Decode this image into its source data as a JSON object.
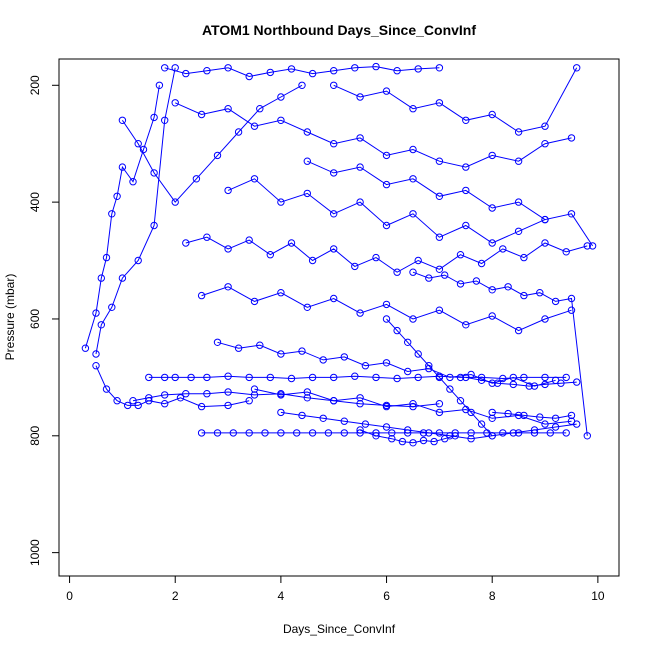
{
  "chart_data": {
    "type": "line",
    "title": "ATOM1 Northbound Days_Since_ConvInf",
    "xlabel": "Days_Since_ConvInf",
    "ylabel": "Pressure (mbar)",
    "xlim": [
      -0.2,
      10.4
    ],
    "ylim": [
      1040,
      155
    ],
    "y_inverted": true,
    "x_ticks": [
      0,
      2,
      4,
      6,
      8,
      10
    ],
    "y_ticks": [
      200,
      400,
      600,
      800,
      1000
    ],
    "marker": "open-circle",
    "color": "#0000ff",
    "series": [
      {
        "x": [
          0.3,
          0.5,
          0.6,
          0.7,
          0.8,
          0.9,
          1.0,
          1.2,
          1.4,
          1.6,
          1.7
        ],
        "y": [
          650,
          590,
          530,
          495,
          420,
          390,
          340,
          365,
          310,
          255,
          200
        ]
      },
      {
        "x": [
          0.5,
          0.6,
          0.8,
          1.0,
          1.3,
          1.6,
          1.8,
          2.0
        ],
        "y": [
          660,
          610,
          580,
          530,
          500,
          440,
          260,
          170
        ]
      },
      {
        "x": [
          0.5,
          0.7,
          0.9,
          1.1,
          1.3,
          1.5,
          1.8,
          2.1,
          2.5,
          3.0,
          3.4
        ],
        "y": [
          680,
          720,
          740,
          748,
          748,
          740,
          745,
          735,
          750,
          748,
          740
        ]
      },
      {
        "x": [
          1.0,
          1.3,
          1.6,
          2.0,
          2.4,
          2.8,
          3.2,
          3.6,
          4.0,
          4.4
        ],
        "y": [
          260,
          300,
          350,
          400,
          360,
          320,
          280,
          240,
          220,
          200
        ]
      },
      {
        "x": [
          1.2,
          1.5,
          1.8,
          2.2,
          2.6,
          3.0,
          3.5,
          4.0,
          4.5,
          5.0,
          5.5,
          6.0,
          6.5,
          7.0
        ],
        "y": [
          740,
          735,
          730,
          728,
          728,
          725,
          730,
          728,
          735,
          740,
          745,
          748,
          750,
          745
        ]
      },
      {
        "x": [
          1.5,
          1.8,
          2.0,
          2.3,
          2.6,
          3.0,
          3.4,
          3.8,
          4.2,
          4.6,
          5.0,
          5.4,
          5.8,
          6.2,
          6.6,
          7.0,
          7.4,
          7.8,
          8.2,
          8.6,
          9.0,
          9.4
        ],
        "y": [
          700,
          700,
          700,
          700,
          700,
          698,
          700,
          700,
          702,
          700,
          700,
          698,
          700,
          702,
          700,
          698,
          700,
          700,
          702,
          700,
          700,
          700
        ]
      },
      {
        "x": [
          2.5,
          2.8,
          3.1,
          3.4,
          3.7,
          4.0,
          4.3,
          4.6,
          4.9,
          5.2,
          5.5,
          5.8,
          6.1,
          6.4,
          6.7,
          7.0,
          7.3,
          7.6,
          7.9,
          8.2,
          8.5,
          8.8,
          9.1,
          9.4
        ],
        "y": [
          795,
          795,
          795,
          795,
          795,
          795,
          795,
          795,
          795,
          795,
          795,
          795,
          795,
          795,
          795,
          795,
          795,
          795,
          795,
          795,
          795,
          795,
          795,
          795
        ]
      },
      {
        "x": [
          1.8,
          2.2,
          2.6,
          3.0,
          3.4,
          3.8,
          4.2,
          4.6,
          5.0,
          5.4,
          5.8,
          6.2,
          6.6,
          7.0
        ],
        "y": [
          170,
          180,
          175,
          170,
          185,
          178,
          172,
          180,
          175,
          170,
          168,
          175,
          172,
          170
        ]
      },
      {
        "x": [
          2.0,
          2.5,
          3.0,
          3.5,
          4.0,
          4.5,
          5.0,
          5.5,
          6.0,
          6.5,
          7.0,
          7.5,
          8.0,
          8.5,
          9.0,
          9.5
        ],
        "y": [
          230,
          250,
          240,
          270,
          260,
          280,
          300,
          290,
          320,
          310,
          330,
          340,
          320,
          330,
          300,
          290
        ]
      },
      {
        "x": [
          2.2,
          2.6,
          3.0,
          3.4,
          3.8,
          4.2,
          4.6,
          5.0,
          5.4,
          5.8,
          6.2,
          6.6,
          7.0,
          7.4,
          7.8,
          8.2,
          8.6,
          9.0,
          9.4,
          9.8
        ],
        "y": [
          470,
          460,
          480,
          465,
          490,
          470,
          500,
          480,
          510,
          495,
          520,
          500,
          515,
          490,
          505,
          480,
          495,
          470,
          485,
          475
        ]
      },
      {
        "x": [
          2.5,
          3.0,
          3.5,
          4.0,
          4.5,
          5.0,
          5.5,
          6.0,
          6.5,
          7.0,
          7.5,
          8.0,
          8.5,
          9.0,
          9.5
        ],
        "y": [
          560,
          545,
          570,
          555,
          580,
          565,
          590,
          575,
          600,
          585,
          610,
          595,
          620,
          600,
          585
        ]
      },
      {
        "x": [
          2.8,
          3.2,
          3.6,
          4.0,
          4.4,
          4.8,
          5.2,
          5.6,
          6.0,
          6.4,
          6.8,
          7.2,
          7.6,
          8.0,
          8.4,
          8.8,
          9.2
        ],
        "y": [
          640,
          650,
          645,
          660,
          655,
          670,
          665,
          680,
          675,
          690,
          685,
          700,
          695,
          710,
          700,
          715,
          705
        ]
      },
      {
        "x": [
          3.0,
          3.5,
          4.0,
          4.5,
          5.0,
          5.5,
          6.0,
          6.5,
          7.0,
          7.5,
          8.0,
          8.5,
          9.0
        ],
        "y": [
          380,
          360,
          400,
          385,
          420,
          400,
          440,
          420,
          460,
          440,
          470,
          450,
          430
        ]
      },
      {
        "x": [
          3.5,
          4.0,
          4.5,
          5.0,
          5.5,
          6.0,
          6.5,
          7.0,
          7.5,
          8.0,
          8.5,
          9.0,
          9.5
        ],
        "y": [
          720,
          730,
          725,
          740,
          735,
          750,
          745,
          760,
          755,
          770,
          765,
          780,
          775
        ]
      },
      {
        "x": [
          4.0,
          4.4,
          4.8,
          5.2,
          5.6,
          6.0,
          6.4,
          6.8,
          7.2,
          7.6,
          8.0,
          8.4,
          8.8,
          9.2,
          9.6
        ],
        "y": [
          760,
          765,
          770,
          775,
          780,
          785,
          790,
          795,
          800,
          805,
          800,
          795,
          790,
          785,
          780
        ]
      },
      {
        "x": [
          5.5,
          5.8,
          6.1,
          6.3,
          6.5,
          6.7,
          6.9,
          7.1,
          7.3
        ],
        "y": [
          790,
          800,
          805,
          810,
          812,
          808,
          810,
          805,
          800
        ]
      },
      {
        "x": [
          6.0,
          6.2,
          6.4,
          6.6,
          6.8,
          7.0,
          7.2,
          7.4,
          7.6,
          7.8,
          8.0
        ],
        "y": [
          600,
          620,
          640,
          660,
          680,
          700,
          720,
          740,
          760,
          780,
          800
        ]
      },
      {
        "x": [
          4.5,
          5.0,
          5.5,
          6.0,
          6.5,
          7.0,
          7.5,
          8.0,
          8.5,
          9.0,
          9.5,
          9.9
        ],
        "y": [
          330,
          350,
          340,
          370,
          360,
          390,
          380,
          410,
          400,
          430,
          420,
          475
        ]
      },
      {
        "x": [
          5.0,
          5.5,
          6.0,
          6.5,
          7.0,
          7.5,
          8.0,
          8.5,
          9.0,
          9.6
        ],
        "y": [
          200,
          220,
          210,
          240,
          230,
          260,
          250,
          280,
          270,
          170
        ]
      },
      {
        "x": [
          6.5,
          6.8,
          7.1,
          7.4,
          7.7,
          8.0,
          8.3,
          8.6,
          8.9,
          9.2,
          9.5,
          9.8
        ],
        "y": [
          520,
          530,
          525,
          540,
          535,
          550,
          545,
          560,
          555,
          570,
          565,
          800
        ]
      },
      {
        "x": [
          7.5,
          7.8,
          8.1,
          8.4,
          8.7,
          9.0,
          9.3,
          9.6
        ],
        "y": [
          700,
          705,
          710,
          712,
          715,
          712,
          710,
          708
        ]
      },
      {
        "x": [
          8.0,
          8.3,
          8.6,
          8.9,
          9.2,
          9.5
        ],
        "y": [
          760,
          762,
          765,
          768,
          770,
          765
        ]
      }
    ]
  }
}
